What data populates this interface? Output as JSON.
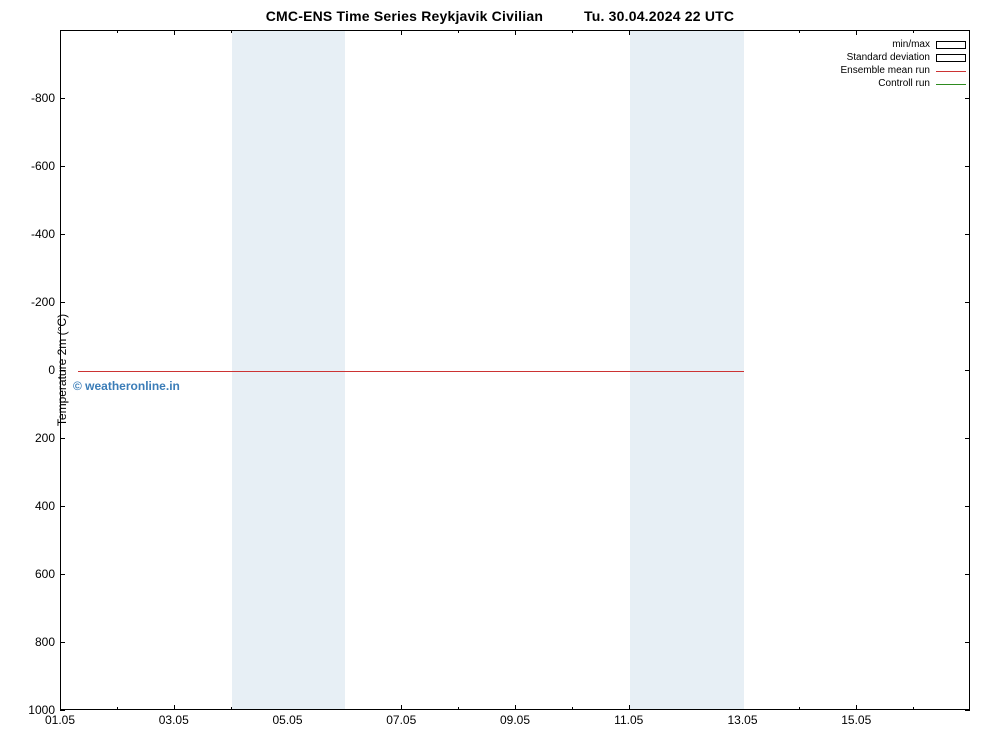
{
  "title_left": "CMC-ENS Time Series Reykjavik Civilian",
  "title_right": "Tu. 30.04.2024 22 UTC",
  "ylabel": "Temperature 2m (°C)",
  "watermark": "© weatheronline.in",
  "watermark_color": "#3b7db8",
  "plot": {
    "type": "line",
    "background_color": "#ffffff",
    "band_color": "#e7eff5",
    "axis_color": "#000000",
    "x_domain_days": [
      1,
      17
    ],
    "x_major_ticks": [
      "01.05",
      "03.05",
      "05.05",
      "07.05",
      "09.05",
      "11.05",
      "13.05",
      "15.05"
    ],
    "x_major_positions": [
      1,
      3,
      5,
      7,
      9,
      11,
      13,
      15
    ],
    "x_minor_positions": [
      2,
      4,
      6,
      8,
      10,
      12,
      14,
      16
    ],
    "y_domain": [
      -1000,
      1000
    ],
    "y_ticks": [
      -800,
      -600,
      -400,
      -200,
      0,
      200,
      400,
      600,
      800,
      1000
    ],
    "y_inverted_display": true,
    "weekend_bands": [
      {
        "start": 4,
        "end": 6
      },
      {
        "start": 11,
        "end": 13
      }
    ],
    "series": {
      "control": {
        "color": "#2e8b1f",
        "y": 0
      },
      "ensemble_mean": {
        "color": "#cc3333",
        "y": 0
      }
    },
    "legend": [
      {
        "label": "min/max",
        "style": "range",
        "color": "#000000"
      },
      {
        "label": "Standard deviation",
        "style": "range",
        "color": "#000000"
      },
      {
        "label": "Ensemble mean run",
        "style": "line",
        "color": "#cc3333"
      },
      {
        "label": "Controll run",
        "style": "line",
        "color": "#2e8b1f"
      }
    ],
    "title_fontsize": 14,
    "tick_fontsize": 12,
    "legend_fontsize": 10
  }
}
